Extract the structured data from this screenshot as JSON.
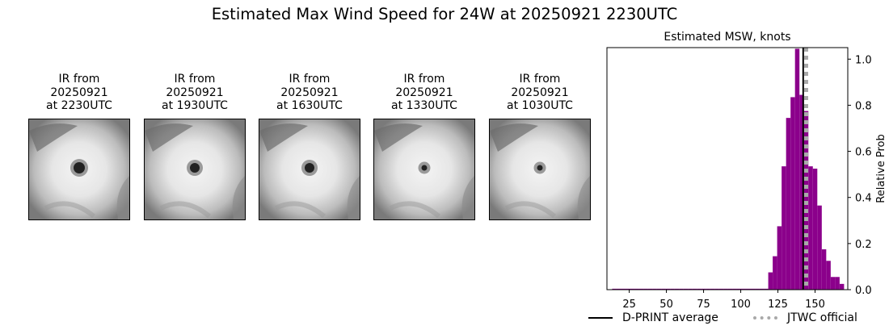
{
  "title": "Estimated Max Wind Speed for 24W at 20250921 2230UTC",
  "ir_panels": [
    {
      "line1": "IR from",
      "line2": "20250921",
      "line3": "at 2230UTC",
      "eye": "large"
    },
    {
      "line1": "IR from",
      "line2": "20250921",
      "line3": "at 1930UTC",
      "eye": "medium"
    },
    {
      "line1": "IR from",
      "line2": "20250921",
      "line3": "at 1630UTC",
      "eye": "medium"
    },
    {
      "line1": "IR from",
      "line2": "20250921",
      "line3": "at 1330UTC",
      "eye": "small"
    },
    {
      "line1": "IR from",
      "line2": "20250921",
      "line3": "at 1030UTC",
      "eye": "small"
    }
  ],
  "chart_data": {
    "type": "bar",
    "title": "Estimated MSW, knots",
    "xlabel": "",
    "ylabel": "Relative Prob",
    "xlim": [
      10,
      172
    ],
    "ylim": [
      0,
      1.05
    ],
    "x_ticks": [
      25,
      50,
      75,
      100,
      125,
      150
    ],
    "y_ticks": [
      0.0,
      0.2,
      0.4,
      0.6,
      0.8,
      1.0
    ],
    "y_tick_labels": [
      "0.0",
      "0.2",
      "0.4",
      "0.6",
      "0.8",
      "1.0"
    ],
    "y_axis_side": "right",
    "bin_width": 3,
    "bins": [
      {
        "x": 15,
        "p": 0.004
      },
      {
        "x": 18,
        "p": 0.004
      },
      {
        "x": 21,
        "p": 0.004
      },
      {
        "x": 24,
        "p": 0.004
      },
      {
        "x": 27,
        "p": 0.004
      },
      {
        "x": 30,
        "p": 0.004
      },
      {
        "x": 33,
        "p": 0.004
      },
      {
        "x": 36,
        "p": 0.004
      },
      {
        "x": 39,
        "p": 0.004
      },
      {
        "x": 42,
        "p": 0.004
      },
      {
        "x": 45,
        "p": 0.004
      },
      {
        "x": 48,
        "p": 0.004
      },
      {
        "x": 51,
        "p": 0.004
      },
      {
        "x": 54,
        "p": 0.004
      },
      {
        "x": 57,
        "p": 0.004
      },
      {
        "x": 60,
        "p": 0.004
      },
      {
        "x": 63,
        "p": 0.004
      },
      {
        "x": 66,
        "p": 0.004
      },
      {
        "x": 69,
        "p": 0.004
      },
      {
        "x": 72,
        "p": 0.004
      },
      {
        "x": 75,
        "p": 0.004
      },
      {
        "x": 78,
        "p": 0.004
      },
      {
        "x": 81,
        "p": 0.004
      },
      {
        "x": 84,
        "p": 0.004
      },
      {
        "x": 87,
        "p": 0.004
      },
      {
        "x": 90,
        "p": 0.004
      },
      {
        "x": 93,
        "p": 0.004
      },
      {
        "x": 96,
        "p": 0.004
      },
      {
        "x": 99,
        "p": 0.004
      },
      {
        "x": 102,
        "p": 0.004
      },
      {
        "x": 105,
        "p": 0.004
      },
      {
        "x": 108,
        "p": 0.004
      },
      {
        "x": 111,
        "p": 0.004
      },
      {
        "x": 114,
        "p": 0.004
      },
      {
        "x": 117,
        "p": 0.004
      },
      {
        "x": 120,
        "p": 0.075
      },
      {
        "x": 123,
        "p": 0.145
      },
      {
        "x": 126,
        "p": 0.275
      },
      {
        "x": 129,
        "p": 0.535
      },
      {
        "x": 132,
        "p": 0.745
      },
      {
        "x": 135,
        "p": 0.835
      },
      {
        "x": 138,
        "p": 1.045
      },
      {
        "x": 141,
        "p": 0.845
      },
      {
        "x": 144,
        "p": 0.775
      },
      {
        "x": 147,
        "p": 0.535
      },
      {
        "x": 150,
        "p": 0.525
      },
      {
        "x": 153,
        "p": 0.365
      },
      {
        "x": 156,
        "p": 0.175
      },
      {
        "x": 159,
        "p": 0.125
      },
      {
        "x": 162,
        "p": 0.055
      },
      {
        "x": 165,
        "p": 0.055
      },
      {
        "x": 168,
        "p": 0.025
      }
    ],
    "bar_color": "#8b008b",
    "dprint_average": 142,
    "jtwc_official": 144,
    "legend": [
      {
        "label": "D-PRINT average",
        "style": "solid",
        "color": "#000000"
      },
      {
        "label": "JTWC official",
        "style": "dotted",
        "color": "#a9a9a9"
      }
    ],
    "legend_placement": "bottom-right"
  }
}
